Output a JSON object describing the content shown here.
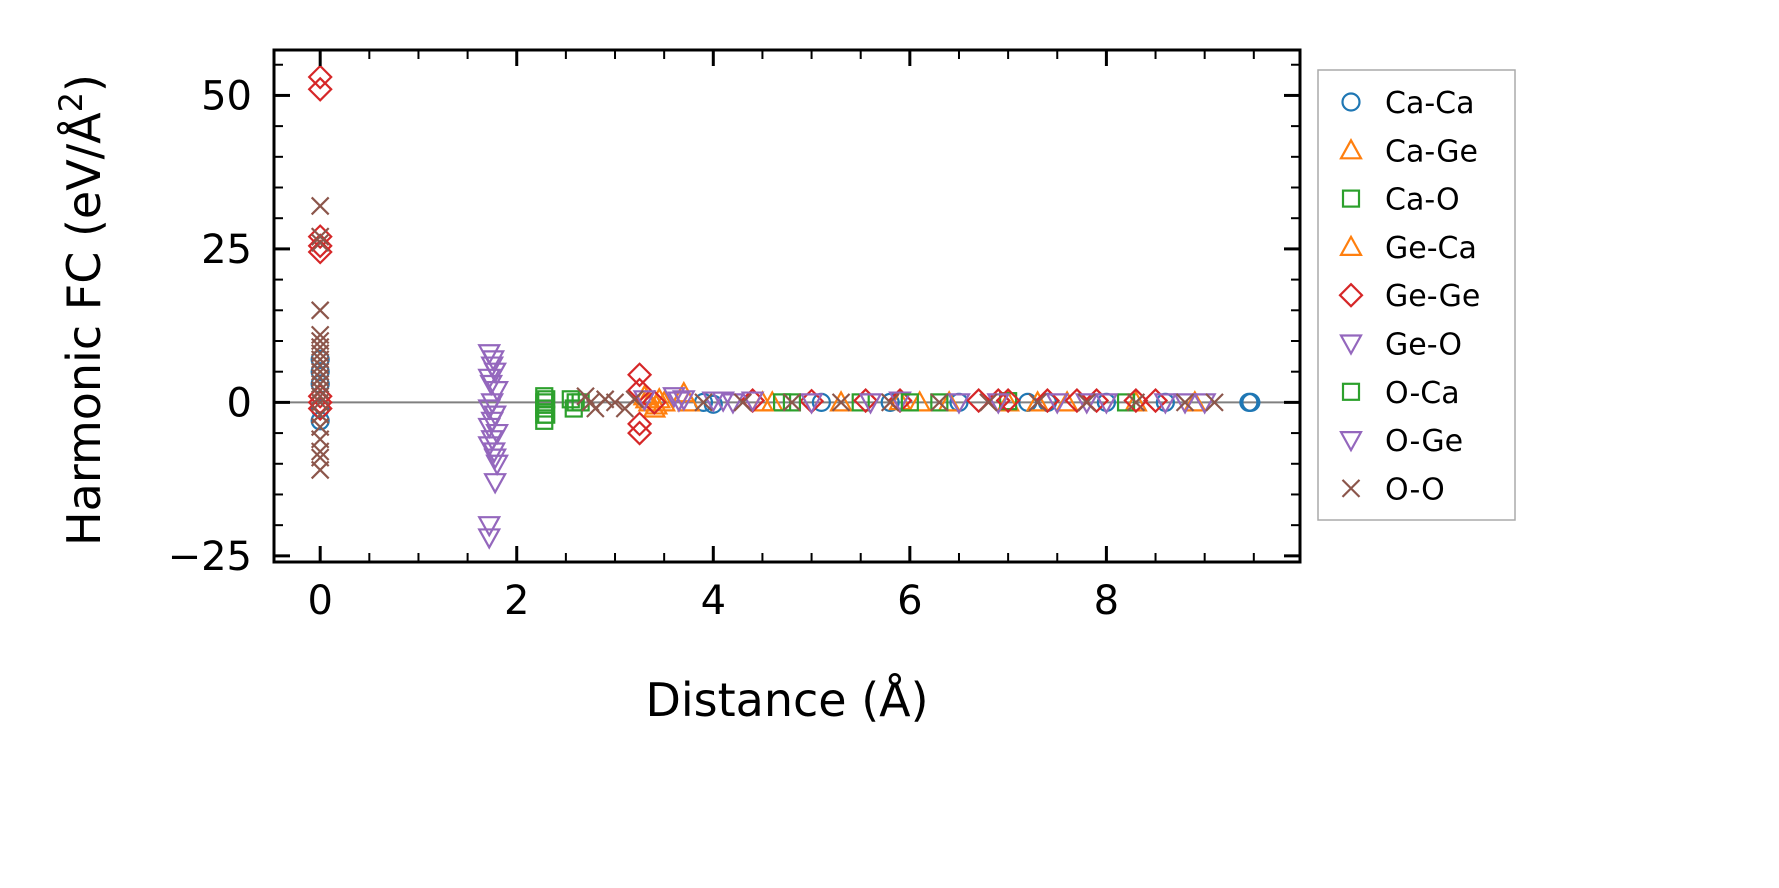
{
  "chart_data": {
    "type": "scatter",
    "title": "",
    "xlabel": "Distance (Å)",
    "ylabel": "Harmonic FC (eV/Å²)",
    "ylabel_parts": {
      "main": "Harmonic FC (eV/Å",
      "sup": "2",
      "end": ")"
    },
    "xlim": [
      -0.47,
      9.97
    ],
    "ylim": [
      -26.0,
      57.4
    ],
    "xticks": [
      0,
      2,
      4,
      6,
      8
    ],
    "xtick_labels": [
      "0",
      "2",
      "4",
      "6",
      "8"
    ],
    "yticks": [
      -25,
      0,
      25,
      50
    ],
    "ytick_labels": [
      "−25",
      "0",
      "25",
      "50"
    ],
    "grid": false,
    "zero_line": 0,
    "legend_position": "outside-right",
    "series": [
      {
        "name": "Ca-Ca",
        "marker": "circle",
        "color": "#1f77b4",
        "points": [
          [
            0,
            7
          ],
          [
            0,
            5
          ],
          [
            0,
            3
          ],
          [
            0,
            -1
          ],
          [
            0,
            -3
          ],
          [
            3.9,
            0
          ],
          [
            4.0,
            -0.3
          ],
          [
            5.1,
            0
          ],
          [
            5.8,
            0
          ],
          [
            6.5,
            0
          ],
          [
            7.2,
            0
          ],
          [
            7.4,
            0
          ],
          [
            8.0,
            0
          ],
          [
            8.6,
            0
          ],
          [
            9.45,
            0
          ],
          [
            9.47,
            0
          ]
        ]
      },
      {
        "name": "Ca-Ge",
        "marker": "triangle-up",
        "color": "#ff7f0e",
        "points": [
          [
            3.3,
            1
          ],
          [
            3.35,
            0
          ],
          [
            3.4,
            -1
          ],
          [
            3.45,
            0.5
          ],
          [
            3.7,
            1.5
          ],
          [
            3.75,
            0
          ],
          [
            4.6,
            0
          ],
          [
            5.3,
            0
          ],
          [
            5.9,
            0.2
          ],
          [
            6.4,
            0
          ],
          [
            7.0,
            0
          ],
          [
            7.6,
            0
          ],
          [
            8.3,
            0
          ],
          [
            8.9,
            0
          ]
        ]
      },
      {
        "name": "Ca-O",
        "marker": "square",
        "color": "#2ca02c",
        "points": [
          [
            2.28,
            1
          ],
          [
            2.28,
            0
          ],
          [
            2.28,
            -1
          ],
          [
            2.28,
            -2
          ],
          [
            2.28,
            -3
          ],
          [
            2.55,
            0.5
          ],
          [
            2.58,
            -1
          ],
          [
            2.65,
            0
          ],
          [
            4.7,
            0
          ],
          [
            5.5,
            0
          ],
          [
            6.3,
            0
          ],
          [
            7.0,
            0.2
          ],
          [
            8.2,
            0
          ]
        ]
      },
      {
        "name": "Ge-Ca",
        "marker": "triangle-up",
        "color": "#ff7f0e",
        "points": [
          [
            3.32,
            0.5
          ],
          [
            3.42,
            -0.5
          ],
          [
            3.5,
            0
          ],
          [
            4.5,
            0
          ],
          [
            6.1,
            0
          ],
          [
            7.3,
            0
          ]
        ]
      },
      {
        "name": "Ge-Ge",
        "marker": "diamond",
        "color": "#d62728",
        "points": [
          [
            0,
            53
          ],
          [
            0,
            51
          ],
          [
            0,
            27
          ],
          [
            0,
            25.5
          ],
          [
            0,
            24.5
          ],
          [
            0,
            1
          ],
          [
            0,
            0
          ],
          [
            0,
            -1
          ],
          [
            3.25,
            4.5
          ],
          [
            3.25,
            2
          ],
          [
            3.25,
            -3.5
          ],
          [
            3.25,
            -5
          ],
          [
            3.4,
            0
          ],
          [
            4.4,
            0.3
          ],
          [
            5.0,
            0.2
          ],
          [
            5.55,
            0.3
          ],
          [
            5.9,
            0.3
          ],
          [
            6.7,
            0.3
          ],
          [
            6.9,
            0.3
          ],
          [
            7.0,
            0.3
          ],
          [
            7.4,
            0.3
          ],
          [
            7.7,
            0.3
          ],
          [
            7.9,
            0.3
          ],
          [
            8.3,
            0.3
          ],
          [
            8.5,
            0.3
          ]
        ]
      },
      {
        "name": "Ge-O",
        "marker": "triangle-down",
        "color": "#9467bd",
        "points": [
          [
            1.72,
            8
          ],
          [
            1.75,
            6
          ],
          [
            1.78,
            5
          ],
          [
            1.72,
            4
          ],
          [
            1.8,
            2
          ],
          [
            1.75,
            0
          ],
          [
            1.72,
            -1
          ],
          [
            1.78,
            -2
          ],
          [
            1.75,
            -3
          ],
          [
            1.72,
            -4
          ],
          [
            1.8,
            -5
          ],
          [
            1.75,
            -6
          ],
          [
            1.72,
            -7
          ],
          [
            1.78,
            -9
          ],
          [
            1.8,
            -10
          ],
          [
            1.78,
            -13
          ],
          [
            1.72,
            -20
          ],
          [
            1.72,
            -22
          ],
          [
            3.3,
            0.5
          ],
          [
            3.6,
            1
          ],
          [
            3.65,
            0.3
          ],
          [
            4.0,
            0.3
          ],
          [
            4.1,
            0.3
          ],
          [
            4.4,
            0.3
          ],
          [
            5.0,
            0
          ],
          [
            5.9,
            0.3
          ],
          [
            6.5,
            0
          ],
          [
            6.9,
            0
          ],
          [
            7.5,
            0
          ],
          [
            8.0,
            0
          ],
          [
            8.6,
            0
          ],
          [
            9.0,
            0
          ]
        ]
      },
      {
        "name": "O-Ca",
        "marker": "square",
        "color": "#2ca02c",
        "points": [
          [
            2.3,
            0.5
          ],
          [
            2.3,
            -2
          ],
          [
            2.6,
            0
          ],
          [
            4.8,
            0
          ],
          [
            6.0,
            0
          ]
        ]
      },
      {
        "name": "O-Ge",
        "marker": "triangle-down",
        "color": "#9467bd",
        "points": [
          [
            1.76,
            7
          ],
          [
            1.74,
            3
          ],
          [
            1.77,
            -8
          ],
          [
            3.7,
            0.5
          ],
          [
            4.2,
            0
          ],
          [
            5.6,
            0
          ],
          [
            7.8,
            0
          ],
          [
            8.8,
            0
          ]
        ]
      },
      {
        "name": "O-O",
        "marker": "x",
        "color": "#8c564b",
        "points": [
          [
            0,
            32
          ],
          [
            0,
            27
          ],
          [
            0,
            26
          ],
          [
            0,
            15
          ],
          [
            0,
            11
          ],
          [
            0,
            10
          ],
          [
            0,
            9
          ],
          [
            0,
            8
          ],
          [
            0,
            7
          ],
          [
            0,
            6
          ],
          [
            0,
            5
          ],
          [
            0,
            4
          ],
          [
            0,
            3
          ],
          [
            0,
            2
          ],
          [
            0,
            1
          ],
          [
            0,
            0
          ],
          [
            0,
            -2
          ],
          [
            0,
            -4
          ],
          [
            0,
            -6
          ],
          [
            0,
            -8
          ],
          [
            0,
            -9
          ],
          [
            0,
            -11
          ],
          [
            2.7,
            1
          ],
          [
            2.75,
            0
          ],
          [
            2.8,
            -1
          ],
          [
            2.9,
            0.5
          ],
          [
            3.0,
            0
          ],
          [
            3.1,
            -1
          ],
          [
            3.2,
            0.5
          ],
          [
            3.9,
            0
          ],
          [
            4.3,
            0
          ],
          [
            4.8,
            0
          ],
          [
            5.3,
            0
          ],
          [
            5.8,
            0
          ],
          [
            6.3,
            0
          ],
          [
            6.8,
            0
          ],
          [
            7.3,
            0
          ],
          [
            7.8,
            0
          ],
          [
            8.3,
            0
          ],
          [
            8.8,
            0
          ],
          [
            9.1,
            0
          ]
        ]
      }
    ]
  }
}
